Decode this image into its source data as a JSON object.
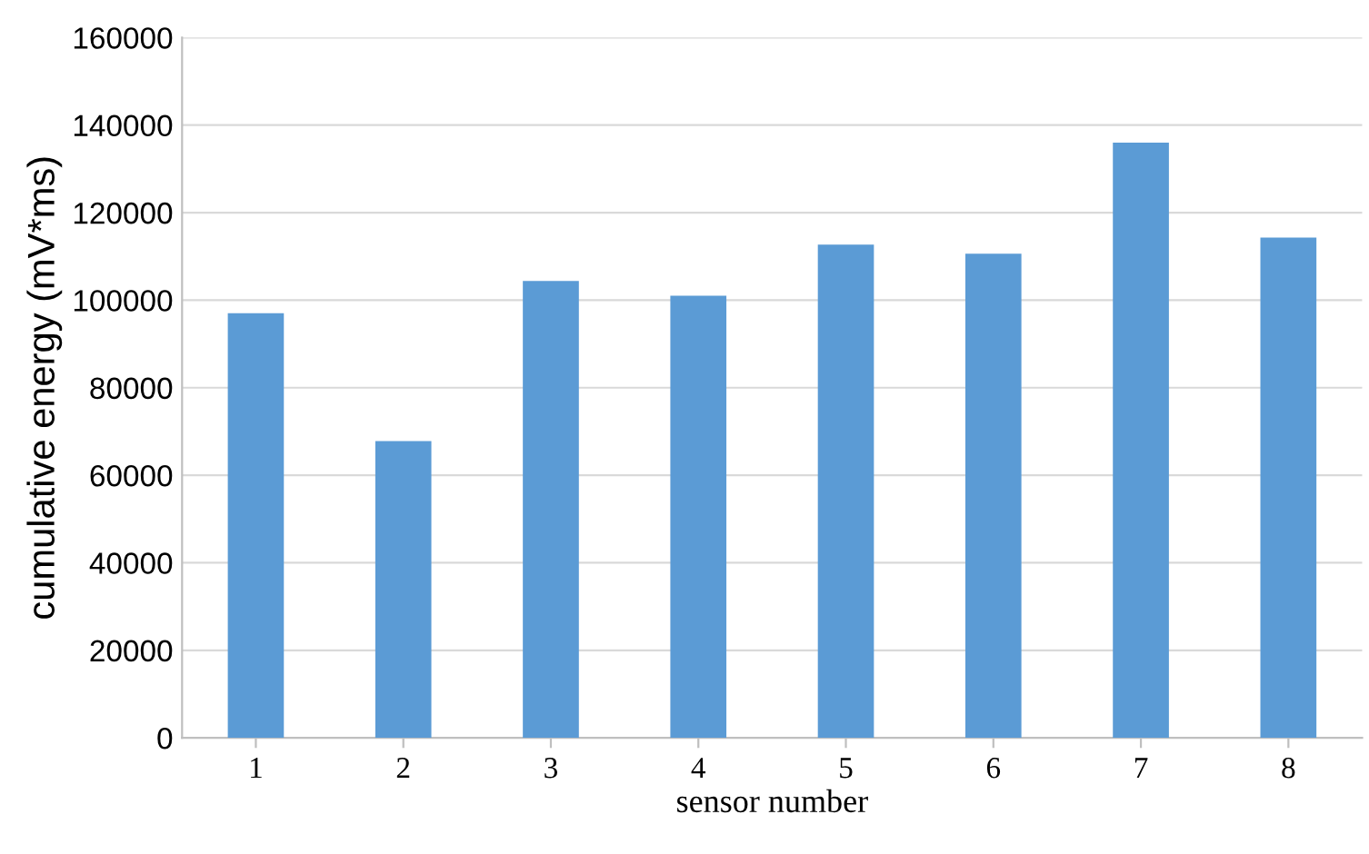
{
  "chart_data": {
    "type": "bar",
    "xlabel": "sensor number",
    "ylabel": "cumulative energy (mV*ms)",
    "categories": [
      "1",
      "2",
      "3",
      "4",
      "5",
      "6",
      "7",
      "8"
    ],
    "values": [
      97000,
      67800,
      104400,
      101000,
      112700,
      110600,
      136000,
      114300
    ],
    "color": "#5b9bd5",
    "ylim": [
      0,
      160000
    ],
    "yticks": [
      0,
      20000,
      40000,
      60000,
      80000,
      100000,
      120000,
      140000,
      160000
    ],
    "grid": "y"
  }
}
